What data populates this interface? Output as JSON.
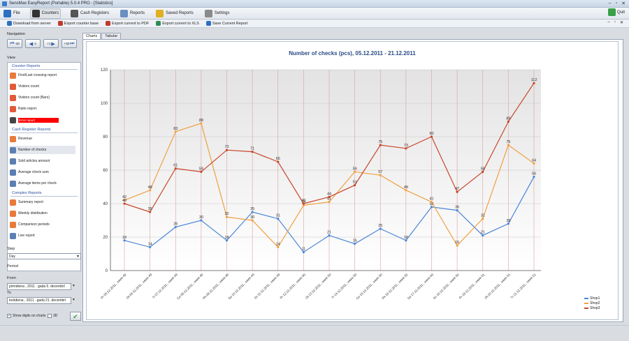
{
  "window": {
    "title": "SensMax EasyReport (Portable) 5.0.4 PRO - [Statistics]"
  },
  "menu": {
    "items": [
      {
        "label": "File",
        "icon": "file-icon",
        "color": "#2d6fc0"
      },
      {
        "label": "Counters",
        "icon": "counters-icon",
        "color": "#333333"
      },
      {
        "label": "Cash Registers",
        "icon": "cash-register-icon",
        "color": "#555555"
      },
      {
        "label": "Reports",
        "icon": "reports-icon",
        "color": "#6a8fc2"
      },
      {
        "label": "Saved Reports",
        "icon": "saved-reports-icon",
        "color": "#e0b020"
      },
      {
        "label": "Settings",
        "icon": "settings-icon",
        "color": "#8a8a8a"
      }
    ],
    "quit_label": "Quit"
  },
  "toolbar": {
    "items": [
      {
        "label": "Download from server",
        "color": "#2d6fc0"
      },
      {
        "label": "Export counter base",
        "color": "#c0392b"
      },
      {
        "label": "Export current to PDF",
        "color": "#c0392b"
      },
      {
        "label": "Export current to XLS",
        "color": "#2e8b57"
      },
      {
        "label": "Save Current Report",
        "color": "#2d6fc0"
      }
    ]
  },
  "left": {
    "navigation_label": "Navigation",
    "nav_buttons": [
      "-30",
      "-1",
      "+1",
      "+30"
    ],
    "view_label": "View",
    "counter_reports_label": "Counter Reports",
    "counter_reports": [
      {
        "label": "First/Last crossing report",
        "color": "#e87a3a"
      },
      {
        "label": "Visitors count",
        "color": "#e25a3a"
      },
      {
        "label": "Visitors count (Bars)",
        "color": "#e25a3a"
      },
      {
        "label": "Ratio report",
        "color": "#e25a3a"
      },
      {
        "label": "Error report",
        "color": "#444444"
      }
    ],
    "cash_reports_label": "Cash Register Reports",
    "cash_reports": [
      {
        "label": "Revenue",
        "color": "#e87a3a"
      },
      {
        "label": "Number of checks",
        "color": "#5a7fb0"
      },
      {
        "label": "Sold articles amount",
        "color": "#5a7fb0"
      },
      {
        "label": "Average check sum",
        "color": "#5a7fb0"
      },
      {
        "label": "Average items per check",
        "color": "#5a7fb0"
      }
    ],
    "complex_reports_label": "Complex Reports",
    "complex_reports": [
      {
        "label": "Summary report",
        "color": "#e87a3a"
      },
      {
        "label": "Weekly distribution",
        "color": "#e87a3a"
      },
      {
        "label": "Comparison periods",
        "color": "#e87a3a"
      },
      {
        "label": "Live report",
        "color": "#5a7fb0"
      }
    ],
    "step_label": "Step",
    "step_value": "Day",
    "period_label": "Period",
    "from_label": "From",
    "from_value": "pirmdiena , 2011 . gada  5. decembrī",
    "to_label": "To",
    "to_value": "trešdiena , 2011 . gada 21. decembrī",
    "show_digits_label": "Show digits on charts",
    "show_digits_checked": "✓",
    "three_d_label": "3D",
    "ok_glyph": "✔"
  },
  "tabs": [
    "Charts",
    "Tabular"
  ],
  "chart_data": {
    "type": "line",
    "title": "Number of checks (pcs), 05.12.2011 - 21.12.2011",
    "categories": [
      "Pr 05.12.2011., week 49",
      "Ot 06.12.2011., week 49",
      "Tr 07.12.2011., week 49",
      "Ce 08.12.2011., week 49",
      "Pk 09.12.2011., week 49",
      "Se 10.12.2011., week 49",
      "Sv 11.12.2011., week 49",
      "Pr 12.12.2011., week 50",
      "Ot 13.12.2011., week 50",
      "Tr 14.12.2011., week 50",
      "Ce 15.12.2011., week 50",
      "Pk 16.12.2011., week 50",
      "Se 17.12.2011., week 50",
      "Sv 18.12.2011., week 50",
      "Pr 19.12.2011., week 51",
      "Ot 20.12.2011., week 51",
      "Tr 21.12.2011., week 51"
    ],
    "series": [
      {
        "name": "Shop1",
        "color": "#4a86d8",
        "values": [
          18,
          14,
          26,
          30,
          18,
          35,
          31,
          11,
          21,
          16,
          25,
          18,
          38,
          36,
          21,
          28,
          56
        ]
      },
      {
        "name": "Shop2",
        "color": "#f0a040",
        "values": [
          42,
          48,
          83,
          88,
          32,
          30,
          14,
          39,
          41,
          59,
          57,
          48,
          41,
          15,
          31,
          75,
          64
        ]
      },
      {
        "name": "Shop3",
        "color": "#c8452a",
        "values": [
          40,
          35,
          61,
          59,
          72,
          71,
          65,
          40,
          44,
          51,
          75,
          73,
          80,
          47,
          59,
          89,
          112
        ]
      }
    ],
    "yticks": [
      0,
      20,
      40,
      60,
      80,
      100,
      120
    ],
    "ylim": [
      0,
      120
    ],
    "grid": true,
    "legend_position": "bottom-right"
  }
}
